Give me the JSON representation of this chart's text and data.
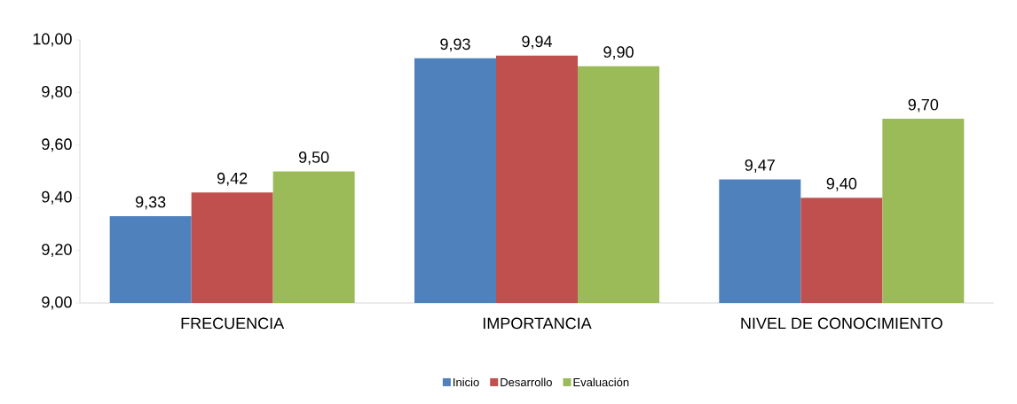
{
  "chart_data": {
    "type": "bar",
    "categories": [
      "FRECUENCIA",
      "IMPORTANCIA",
      "NIVEL DE CONOCIMIENTO"
    ],
    "series": [
      {
        "name": "Inicio",
        "color": "#4f81bd",
        "values": [
          9.33,
          9.93,
          9.47
        ],
        "value_labels": [
          "9,33",
          "9,93",
          "9,47"
        ]
      },
      {
        "name": "Desarrollo",
        "color": "#c0504d",
        "values": [
          9.42,
          9.94,
          9.4
        ],
        "value_labels": [
          "9,42",
          "9,94",
          "9,40"
        ]
      },
      {
        "name": "Evaluación",
        "color": "#9bbb59",
        "values": [
          9.5,
          9.9,
          9.7
        ],
        "value_labels": [
          "9,50",
          "9,90",
          "9,70"
        ]
      }
    ],
    "ylim": [
      9.0,
      10.0
    ],
    "yticks": [
      {
        "value": 9.0,
        "label": "9,00"
      },
      {
        "value": 9.2,
        "label": "9,20"
      },
      {
        "value": 9.4,
        "label": "9,40"
      },
      {
        "value": 9.6,
        "label": "9,60"
      },
      {
        "value": 9.8,
        "label": "9,80"
      },
      {
        "value": 10.0,
        "label": "10,00"
      }
    ],
    "grid": false,
    "legend": "bottom"
  }
}
